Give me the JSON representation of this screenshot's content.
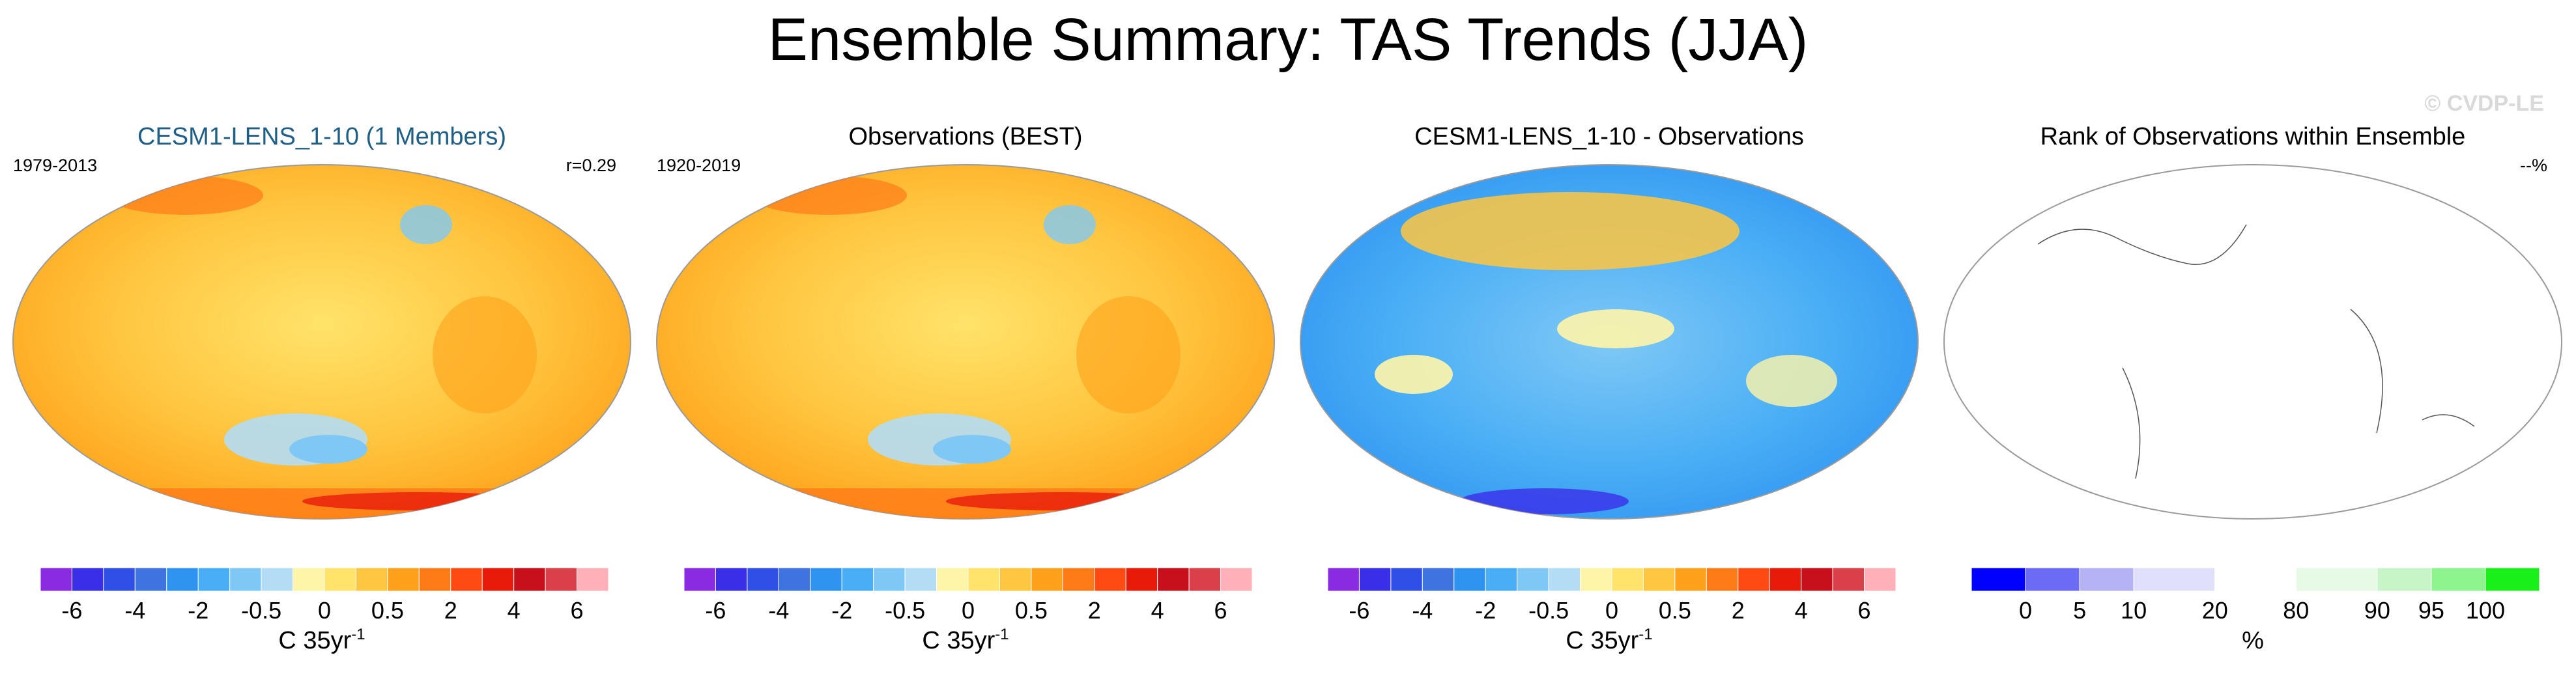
{
  "title": "Ensemble Summary: TAS Trends (JJA)",
  "watermark": "© CVDP-LE",
  "panels": [
    {
      "id": "model",
      "title": "CESM1-LENS_1-10 (1 Members)",
      "title_color": "#1f5f85",
      "left_label": "1979-2013",
      "right_label": "r=0.29",
      "fill_style": "warm",
      "colorbar": {
        "colors": [
          "#8a2be2",
          "#3a2ee8",
          "#2f4fe6",
          "#3f73e0",
          "#2f93f0",
          "#49aef5",
          "#7fc8f5",
          "#b3dcf5",
          "#fff5a8",
          "#ffe36a",
          "#ffc640",
          "#ffa11a",
          "#ff7b17",
          "#ff4a12",
          "#e81a0a",
          "#c8101c",
          "#d9404a",
          "#ffb0b8"
        ],
        "tick_labels": [
          "-6",
          "-4",
          "-2",
          "-0.5",
          "0",
          "0.5",
          "2",
          "4",
          "6"
        ],
        "units_main": "C 35yr",
        "units_sup": "-1"
      }
    },
    {
      "id": "obs",
      "title": "Observations (BEST)",
      "title_color": "#000000",
      "left_label": "1920-2019",
      "right_label": "",
      "fill_style": "warm",
      "colorbar": {
        "colors": [
          "#8a2be2",
          "#3a2ee8",
          "#2f4fe6",
          "#3f73e0",
          "#2f93f0",
          "#49aef5",
          "#7fc8f5",
          "#b3dcf5",
          "#fff5a8",
          "#ffe36a",
          "#ffc640",
          "#ffa11a",
          "#ff7b17",
          "#ff4a12",
          "#e81a0a",
          "#c8101c",
          "#d9404a",
          "#ffb0b8"
        ],
        "tick_labels": [
          "-6",
          "-4",
          "-2",
          "-0.5",
          "0",
          "0.5",
          "2",
          "4",
          "6"
        ],
        "units_main": "C 35yr",
        "units_sup": "-1"
      }
    },
    {
      "id": "diff",
      "title": "CESM1-LENS_1-10 - Observations",
      "title_color": "#000000",
      "left_label": "",
      "right_label": "",
      "fill_style": "cool",
      "colorbar": {
        "colors": [
          "#8a2be2",
          "#3a2ee8",
          "#2f4fe6",
          "#3f73e0",
          "#2f93f0",
          "#49aef5",
          "#7fc8f5",
          "#b3dcf5",
          "#fff5a8",
          "#ffe36a",
          "#ffc640",
          "#ffa11a",
          "#ff7b17",
          "#ff4a12",
          "#e81a0a",
          "#c8101c",
          "#d9404a",
          "#ffb0b8"
        ],
        "tick_labels": [
          "-6",
          "-4",
          "-2",
          "-0.5",
          "0",
          "0.5",
          "2",
          "4",
          "6"
        ],
        "units_main": "C 35yr",
        "units_sup": "-1"
      }
    },
    {
      "id": "rank",
      "title": "Rank of Observations within Ensemble",
      "title_color": "#000000",
      "left_label": "",
      "right_label": "--%",
      "fill_style": "blank",
      "colorbar": {
        "colors": [
          "#0000ff",
          "#6b6bf5",
          "#b3b3f5",
          "#e0e0fa",
          "#ffffff",
          "#e6fae6",
          "#c8f5c8",
          "#8ef58e",
          "#19f019"
        ],
        "widths": [
          2,
          2,
          2,
          3,
          3,
          3,
          2,
          2,
          2
        ],
        "tick_labels": [
          "0",
          "5",
          "10",
          "20",
          "80",
          "90",
          "95",
          "100"
        ],
        "units_main": "%",
        "units_sup": ""
      }
    }
  ]
}
